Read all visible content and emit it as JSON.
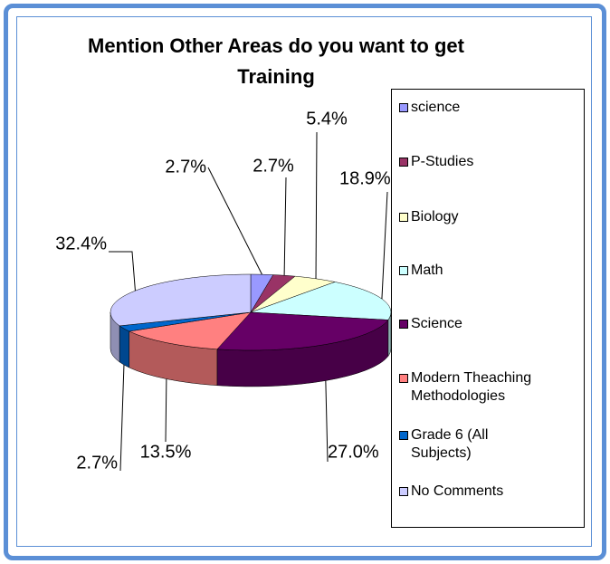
{
  "chart_data": {
    "type": "pie3d",
    "title": "Mention Other Areas do you want to get Training",
    "categories": [
      "science",
      "P-Studies",
      "Biology",
      "Math",
      "Science",
      "Modern Theaching Methodologies",
      "Grade 6 (All Subjects)",
      "No Comments"
    ],
    "values": [
      2.7,
      2.7,
      5.4,
      18.9,
      27.0,
      13.5,
      2.7,
      32.4
    ],
    "value_labels": [
      "2.7%",
      "2.7%",
      "5.4%",
      "18.9%",
      "27.0%",
      "13.5%",
      "2.7%",
      "32.4%"
    ],
    "colors": [
      "#9999ff",
      "#993366",
      "#ffffcc",
      "#ccffff",
      "#660066",
      "#ff8080",
      "#0066cc",
      "#ccccff"
    ],
    "legend": "right"
  }
}
